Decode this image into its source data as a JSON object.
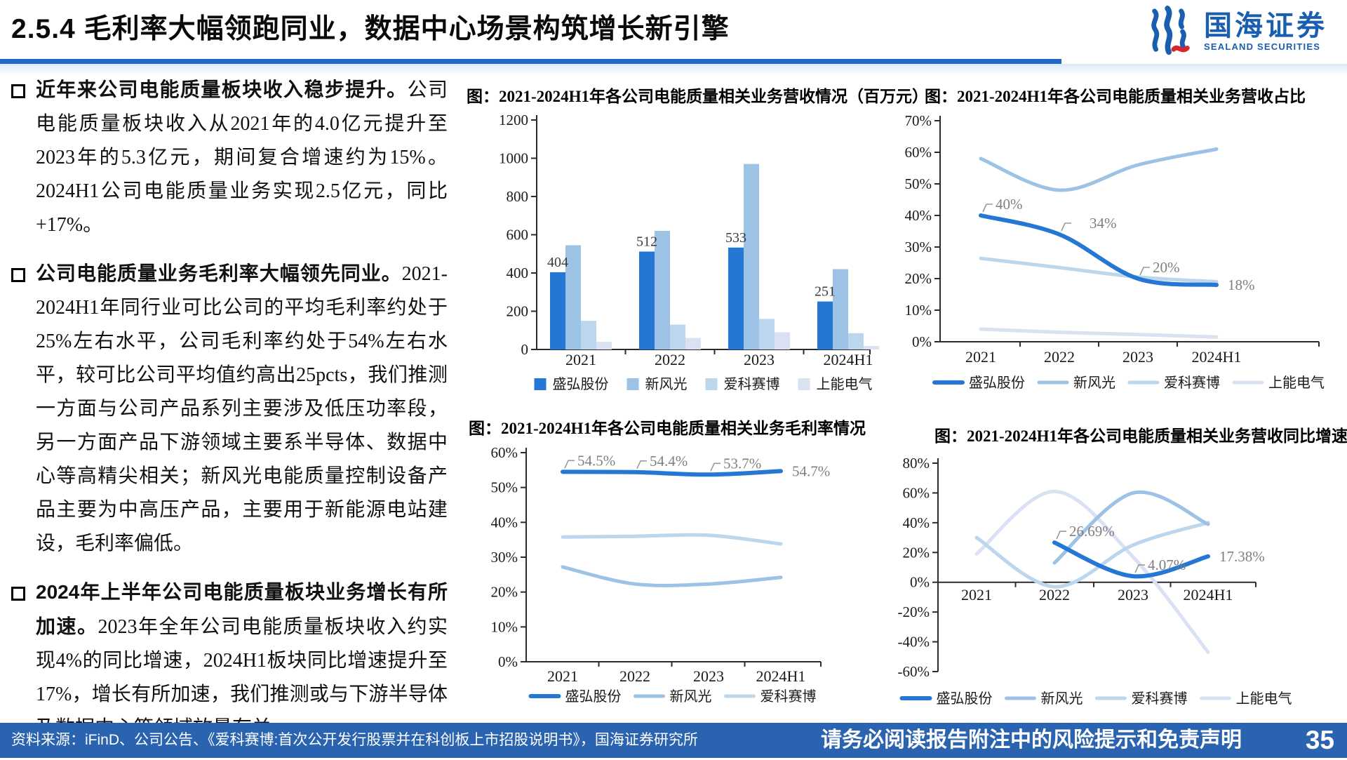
{
  "header": {
    "title": "2.5.4 毛利率大幅领跑同业，数据中心场景构筑增长新引擎",
    "logo": {
      "cn": "国海证券",
      "en": "SEALAND SECURITIES"
    }
  },
  "bullets": [
    {
      "lead": "近年来公司电能质量板块收入稳步提升。",
      "body": "公司电能质量板块收入从2021年的4.0亿元提升至2023年的5.3亿元，期间复合增速约为15%。2024H1公司电能质量业务实现2.5亿元，同比+17%。"
    },
    {
      "lead": "公司电能质量业务毛利率大幅领先同业。",
      "body": "2021-2024H1年同行业可比公司的平均毛利率约处于25%左右水平，公司毛利率约处于54%左右水平，较可比公司平均值约高出25pcts，我们推测一方面与公司产品系列主要涉及低压功率段，另一方面产品下游领域主要系半导体、数据中心等高精尖相关；新风光电能质量控制设备产品主要为中高压产品，主要用于新能源电站建设，毛利率偏低。"
    },
    {
      "lead": "2024年上半年公司电能质量板块业务增长有所加速。",
      "body": "2023年全年公司电能质量板块收入约实现4%的同比增速，2024H1板块同比增速提升至17%，增长有所加速，我们推测或与下游半导体及数据中心等领域放量有关。"
    }
  ],
  "chart_data": [
    {
      "id": "revenue-bars",
      "type": "bar",
      "title": "图：2021-2024H1年各公司电能质量相关业务营收情况（百万元）",
      "categories": [
        "2021",
        "2022",
        "2023",
        "2024H1"
      ],
      "series": [
        {
          "name": "盛弘股份",
          "color": "#2577d4",
          "values": [
            404,
            512,
            533,
            251
          ]
        },
        {
          "name": "新风光",
          "color": "#9cc2e5",
          "values": [
            545,
            620,
            970,
            420
          ]
        },
        {
          "name": "爱科赛博",
          "color": "#bcd6ee",
          "values": [
            150,
            130,
            160,
            85
          ]
        },
        {
          "name": "上能电气",
          "color": "#d9e1f2",
          "values": [
            40,
            60,
            90,
            18
          ]
        }
      ],
      "ylim": [
        0,
        1200
      ],
      "ystep": 200,
      "yfmt": "plain",
      "labels": [
        {
          "text": "404",
          "series": 0,
          "index": 0,
          "mode": "bar"
        },
        {
          "text": "512",
          "series": 0,
          "index": 1,
          "mode": "bar"
        },
        {
          "text": "533",
          "series": 0,
          "index": 2,
          "mode": "bar"
        },
        {
          "text": "251",
          "series": 0,
          "index": 3,
          "mode": "bar"
        }
      ],
      "legend_position": "bottom",
      "grid": false
    },
    {
      "id": "revenue-share",
      "type": "line",
      "title": "图：2021-2024H1年各公司电能质量相关业务营收占比",
      "categories": [
        "2021",
        "2022",
        "2023",
        "2024H1"
      ],
      "series": [
        {
          "name": "盛弘股份",
          "color": "#2577d4",
          "values": [
            40,
            34,
            20,
            18
          ]
        },
        {
          "name": "新风光",
          "color": "#9cc2e5",
          "values": [
            58,
            48,
            56,
            61
          ]
        },
        {
          "name": "爱科赛博",
          "color": "#bcd6ee",
          "values": [
            26.4,
            23.5,
            20.5,
            19
          ]
        },
        {
          "name": "上能电气",
          "color": "#d9e1f2",
          "values": [
            4,
            3,
            2.3,
            1.5
          ]
        }
      ],
      "ylim": [
        0,
        70
      ],
      "ystep": 10,
      "yfmt": "pct",
      "labels": [
        {
          "text": "40%",
          "series": 0,
          "index": 0,
          "mode": "callout"
        },
        {
          "text": "34%",
          "series": 0,
          "index": 1,
          "mode": "callout",
          "dx": 22
        },
        {
          "text": "20%",
          "series": 0,
          "index": 2,
          "mode": "callout"
        },
        {
          "text": "18%",
          "series": 0,
          "index": 3,
          "mode": "plain"
        }
      ],
      "legend_position": "bottom",
      "grid": false
    },
    {
      "id": "gross-margin",
      "type": "line",
      "title": "图：2021-2024H1年各公司电能质量相关业务毛利率情况",
      "categories": [
        "2021",
        "2022",
        "2023",
        "2024H1"
      ],
      "series": [
        {
          "name": "盛弘股份",
          "color": "#2577d4",
          "values": [
            54.5,
            54.4,
            53.7,
            54.7
          ]
        },
        {
          "name": "新风光",
          "color": "#9cc2e5",
          "values": [
            27.2,
            22.3,
            22.3,
            24.2
          ]
        },
        {
          "name": "爱科赛博",
          "color": "#bcd6ee",
          "values": [
            35.8,
            36,
            36.3,
            33.8
          ]
        }
      ],
      "ylim": [
        0,
        60
      ],
      "ystep": 10,
      "yfmt": "pct",
      "labels": [
        {
          "text": "54.5%",
          "series": 0,
          "index": 0,
          "mode": "callout"
        },
        {
          "text": "54.4%",
          "series": 0,
          "index": 1,
          "mode": "callout"
        },
        {
          "text": "53.7%",
          "series": 0,
          "index": 2,
          "mode": "callout"
        },
        {
          "text": "54.7%",
          "series": 0,
          "index": 3,
          "mode": "plain"
        }
      ],
      "legend_position": "bottom",
      "grid": false
    },
    {
      "id": "yoy-growth",
      "type": "line",
      "title": "图：2021-2024H1年各公司电能质量相关业务营收同比增速",
      "categories": [
        "2021",
        "2022",
        "2023",
        "2024H1"
      ],
      "series": [
        {
          "name": "盛弘股份",
          "color": "#2577d4",
          "values": [
            null,
            26.69,
            4.07,
            17.38
          ]
        },
        {
          "name": "新风光",
          "color": "#9cc2e5",
          "values": [
            null,
            13,
            60,
            39
          ]
        },
        {
          "name": "爱科赛博",
          "color": "#bcd6ee",
          "values": [
            30,
            -3,
            25,
            40
          ]
        },
        {
          "name": "上能电气",
          "color": "#d9e1f2",
          "values": [
            19,
            61,
            17,
            -47
          ]
        }
      ],
      "ylim": [
        -60,
        80
      ],
      "ystep": 20,
      "yfmt": "pct",
      "labels": [
        {
          "text": "26.69%",
          "series": 0,
          "index": 1,
          "mode": "callout"
        },
        {
          "text": "4.07%",
          "series": 0,
          "index": 2,
          "mode": "callout"
        },
        {
          "text": "17.38%",
          "series": 0,
          "index": 3,
          "mode": "plain"
        }
      ],
      "legend_position": "bottom",
      "grid": false
    }
  ],
  "footer": {
    "source": "资料来源：iFinD、公司公告、《爱科赛博:首次公开发行股票并在科创板上市招股说明书》，国海证券研究所",
    "disclaimer": "请务必阅读报告附注中的风险提示和免责声明",
    "page": "35"
  }
}
